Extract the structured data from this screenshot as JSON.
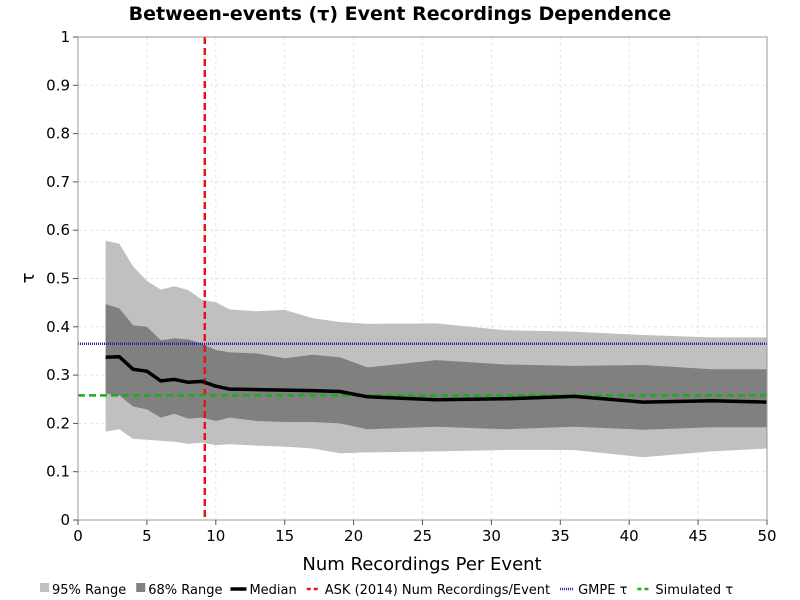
{
  "chart_data": {
    "type": "area",
    "title": "Between-events (τ) Event Recordings Dependence",
    "xlabel": "Num Recordings Per Event",
    "ylabel": "τ",
    "xlim": [
      0,
      50
    ],
    "ylim": [
      0,
      1
    ],
    "grid": true,
    "legend_placement": "bottom",
    "x_ticks": [
      "0",
      "5",
      "10",
      "15",
      "20",
      "25",
      "30",
      "35",
      "40",
      "45",
      "50"
    ],
    "y_ticks": [
      "0",
      "0.1",
      "0.2",
      "0.3",
      "0.4",
      "0.5",
      "0.6",
      "0.7",
      "0.8",
      "0.9",
      "1"
    ],
    "x": [
      2,
      3,
      4,
      5,
      6,
      7,
      8,
      9,
      10,
      11,
      13,
      15,
      17,
      19,
      21,
      26,
      31,
      36,
      41,
      46,
      50
    ],
    "series": [
      {
        "name": "95% Range",
        "kind": "band",
        "color": "#c0c0c0",
        "lower": [
          0.183,
          0.188,
          0.168,
          0.166,
          0.164,
          0.162,
          0.158,
          0.16,
          0.155,
          0.157,
          0.154,
          0.152,
          0.148,
          0.138,
          0.14,
          0.142,
          0.145,
          0.145,
          0.13,
          0.142,
          0.148
        ],
        "upper": [
          0.578,
          0.572,
          0.525,
          0.495,
          0.477,
          0.484,
          0.476,
          0.456,
          0.451,
          0.436,
          0.432,
          0.435,
          0.418,
          0.41,
          0.406,
          0.407,
          0.393,
          0.39,
          0.383,
          0.378,
          0.378
        ]
      },
      {
        "name": "68% Range",
        "kind": "band",
        "color": "#808080",
        "lower": [
          0.262,
          0.258,
          0.235,
          0.229,
          0.212,
          0.22,
          0.21,
          0.212,
          0.205,
          0.212,
          0.205,
          0.203,
          0.203,
          0.2,
          0.188,
          0.193,
          0.188,
          0.193,
          0.187,
          0.192,
          0.192
        ],
        "upper": [
          0.447,
          0.438,
          0.403,
          0.4,
          0.372,
          0.376,
          0.374,
          0.365,
          0.352,
          0.347,
          0.345,
          0.335,
          0.342,
          0.337,
          0.316,
          0.331,
          0.322,
          0.319,
          0.321,
          0.312,
          0.312
        ]
      },
      {
        "name": "Median",
        "kind": "line",
        "color": "#000000",
        "values": [
          0.337,
          0.338,
          0.312,
          0.308,
          0.288,
          0.291,
          0.285,
          0.287,
          0.277,
          0.271,
          0.27,
          0.269,
          0.268,
          0.266,
          0.255,
          0.249,
          0.251,
          0.256,
          0.244,
          0.247,
          0.244
        ]
      },
      {
        "name": "ASK (2014) Num Recordings/Event",
        "kind": "vline",
        "color": "#e8141c",
        "x_value": 9.2
      },
      {
        "name": "GMPE τ",
        "kind": "hline",
        "color": "#1f1fb4",
        "y_value": 0.365
      },
      {
        "name": "Simulated τ",
        "kind": "hline",
        "color": "#1cab1c",
        "y_value": 0.258
      }
    ]
  }
}
